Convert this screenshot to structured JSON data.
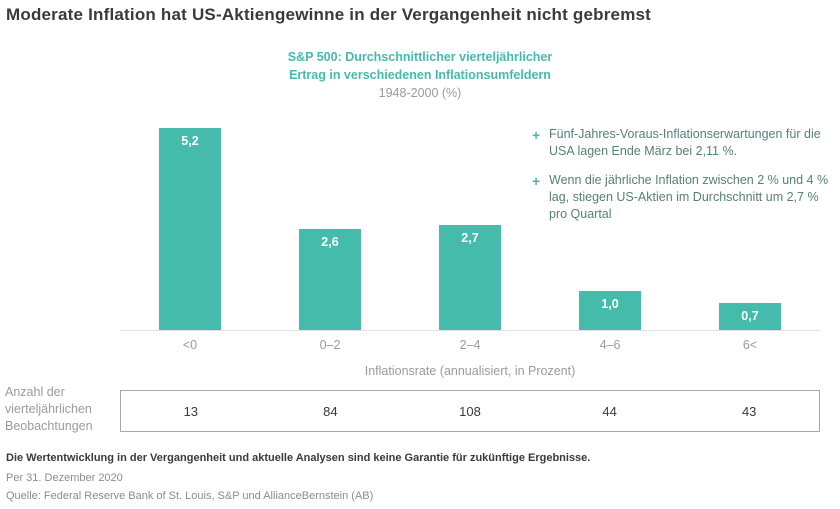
{
  "title": "Moderate Inflation hat US-Aktiengewinne in der Vergangenheit nicht gebremst",
  "chart_data": {
    "type": "bar",
    "title_line1": "S&P 500: Durchschnittlicher vierteljährlicher",
    "title_line2": "Ertrag in verschiedenen Inflationsumfeldern",
    "subtitle": "1948-2000 (%)",
    "categories": [
      "<0",
      "0–2",
      "2–4",
      "4–6",
      "6<"
    ],
    "values": [
      5.2,
      2.6,
      2.7,
      1.0,
      0.7
    ],
    "value_labels": [
      "5,2",
      "2,6",
      "2,7",
      "1,0",
      "0,7"
    ],
    "xlabel": "Inflationsrate (annualisiert, in Prozent)",
    "ylim": [
      0,
      5.5
    ],
    "grid": false,
    "legend": "none",
    "bar_color": "#45bcab",
    "observations_label": "Anzahl der vierteljährlichen Beobachtungen",
    "observations": [
      "13",
      "84",
      "108",
      "44",
      "43"
    ]
  },
  "annotations": [
    {
      "bullet": "+",
      "text": "Fünf-Jahres-Voraus-Inflationserwartungen für die USA lagen Ende März bei 2,11 %."
    },
    {
      "bullet": "+",
      "text": "Wenn die jährliche Inflation zwischen 2 % und 4 % lag, stiegen US-Aktien im Durchschnitt um 2,7 % pro Quartal"
    }
  ],
  "footer": {
    "disclaimer": "Die Wertentwicklung in der Vergangenheit und aktuelle Analysen sind keine Garantie für zukünftige Ergebnisse.",
    "as_of": "Per 31. Dezember 2020",
    "source": "Quelle: Federal Reserve Bank of St. Louis, S&P und AllianceBernstein (AB)"
  }
}
